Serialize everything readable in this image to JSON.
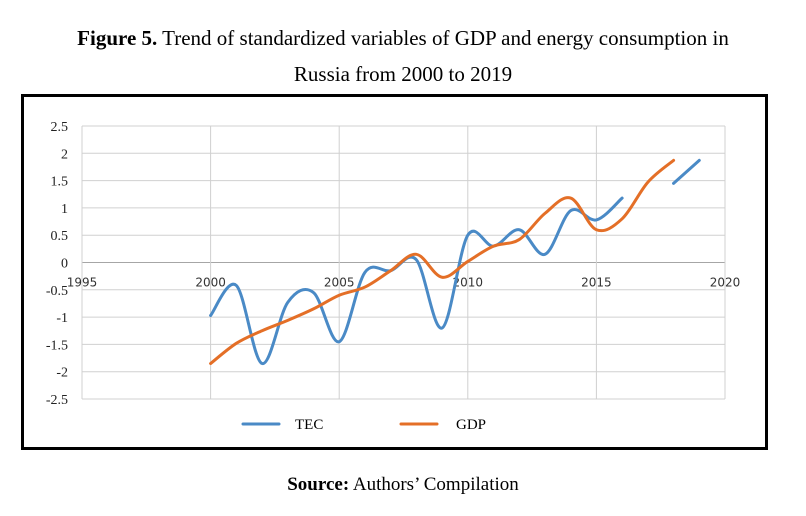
{
  "caption": {
    "figure_label": "Figure 5.",
    "line1_rest": " Trend of standardized variables of GDP and energy consumption in",
    "line2": "Russia from 2000 to 2019"
  },
  "source": {
    "label": "Source:",
    "text": " Authors’ Compilation"
  },
  "chart_data": {
    "type": "line",
    "title": "Trend of standardized variables of GDP and energy consumption in Russia from 2000 to 2019",
    "xlabel": "",
    "ylabel": "",
    "xlim": [
      1995,
      2020
    ],
    "ylim": [
      -2.5,
      2.5
    ],
    "xticks": [
      1995,
      2000,
      2005,
      2010,
      2015,
      2020
    ],
    "xtick_labels": [
      "1995",
      "2000",
      "2005",
      "2010",
      "2015",
      "2020"
    ],
    "yticks": [
      2.5,
      2,
      1.5,
      1,
      0.5,
      0,
      -0.5,
      -1,
      -1.5,
      -2,
      -2.5
    ],
    "ytick_labels": [
      "2.5",
      "2",
      "1.5",
      "1",
      "0.5",
      "0",
      "-0.5",
      "-1",
      "-1.5",
      "-2",
      "-2.5"
    ],
    "grid": true,
    "smoothed": true,
    "legend_position": "bottom",
    "x": [
      2000,
      2001,
      2002,
      2003,
      2004,
      2005,
      2006,
      2007,
      2008,
      2009,
      2010,
      2011,
      2012,
      2013,
      2014,
      2015,
      2016,
      2017,
      2018,
      2019
    ],
    "series": [
      {
        "name": "TEC",
        "color": "#4a8ac6",
        "values": [
          -0.97,
          -0.42,
          -1.85,
          -0.73,
          -0.55,
          -1.45,
          -0.18,
          -0.15,
          0.05,
          -1.2,
          0.5,
          0.3,
          0.6,
          0.15,
          0.95,
          0.78,
          1.18,
          null,
          1.45,
          1.87
        ]
      },
      {
        "name": "GDP",
        "color": "#e46f27",
        "values": [
          -1.85,
          -1.48,
          -1.25,
          -1.06,
          -0.85,
          -0.6,
          -0.45,
          -0.15,
          0.15,
          -0.27,
          0.02,
          0.3,
          0.42,
          0.9,
          1.18,
          0.6,
          0.8,
          1.47,
          1.87,
          null
        ]
      }
    ]
  }
}
